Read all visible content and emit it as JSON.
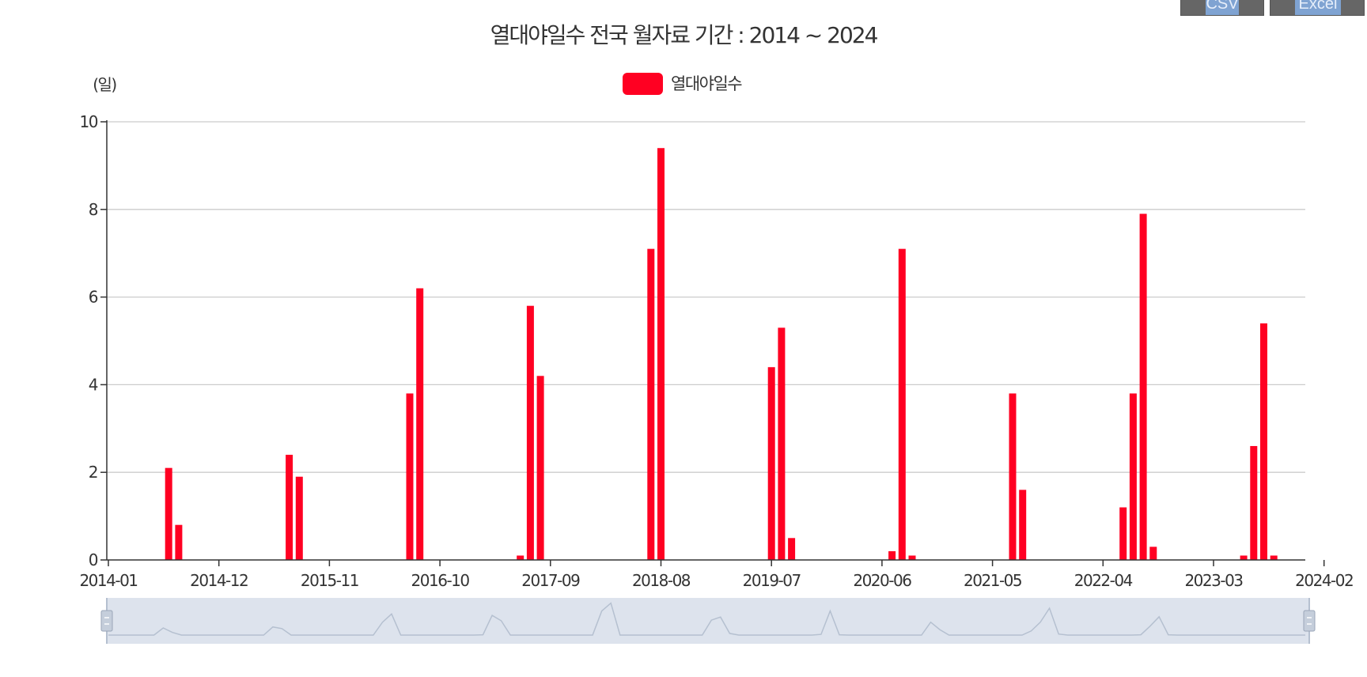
{
  "export_buttons": {
    "csv_label": "CSV",
    "excel_label": "Excel"
  },
  "colors": {
    "bar": "#ff0022",
    "grid": "#cccccc",
    "axis": "#333333",
    "navigator_fill": "#dde3ed",
    "navigator_line": "#b5c0d0"
  },
  "chart_data": {
    "type": "bar",
    "title": "열대야일수 전국 월자료 기간 : 2014 ~ 2024",
    "ylabel": "(일)",
    "ylim": [
      0,
      10
    ],
    "yticks": [
      0,
      2,
      4,
      6,
      8,
      10
    ],
    "grid": true,
    "legend_position": "top-center",
    "x_ticks": [
      "2014-01",
      "2014-12",
      "2015-11",
      "2016-10",
      "2017-09",
      "2018-08",
      "2019-07",
      "2020-06",
      "2021-05",
      "2022-04",
      "2023-03",
      "2024-02"
    ],
    "x_start": "2014-01",
    "x_end": "2024-12",
    "series": [
      {
        "name": "열대야일수",
        "color": "#ff0022",
        "points": [
          [
            "2014-07",
            2.1
          ],
          [
            "2014-08",
            0.8
          ],
          [
            "2015-07",
            2.4
          ],
          [
            "2015-08",
            1.9
          ],
          [
            "2016-07",
            3.8
          ],
          [
            "2016-08",
            6.2
          ],
          [
            "2017-06",
            0.1
          ],
          [
            "2017-07",
            5.8
          ],
          [
            "2017-08",
            4.2
          ],
          [
            "2018-07",
            7.1
          ],
          [
            "2018-08",
            9.4
          ],
          [
            "2019-07",
            4.4
          ],
          [
            "2019-08",
            5.3
          ],
          [
            "2019-09",
            0.5
          ],
          [
            "2020-07",
            0.2
          ],
          [
            "2020-08",
            7.1
          ],
          [
            "2020-09",
            0.1
          ],
          [
            "2021-07",
            3.8
          ],
          [
            "2021-08",
            1.6
          ],
          [
            "2022-06",
            1.2
          ],
          [
            "2022-07",
            3.8
          ],
          [
            "2022-08",
            7.9
          ],
          [
            "2022-09",
            0.3
          ],
          [
            "2023-06",
            0.1
          ],
          [
            "2023-07",
            2.6
          ],
          [
            "2023-08",
            5.4
          ],
          [
            "2023-09",
            0.1
          ]
        ]
      }
    ]
  }
}
